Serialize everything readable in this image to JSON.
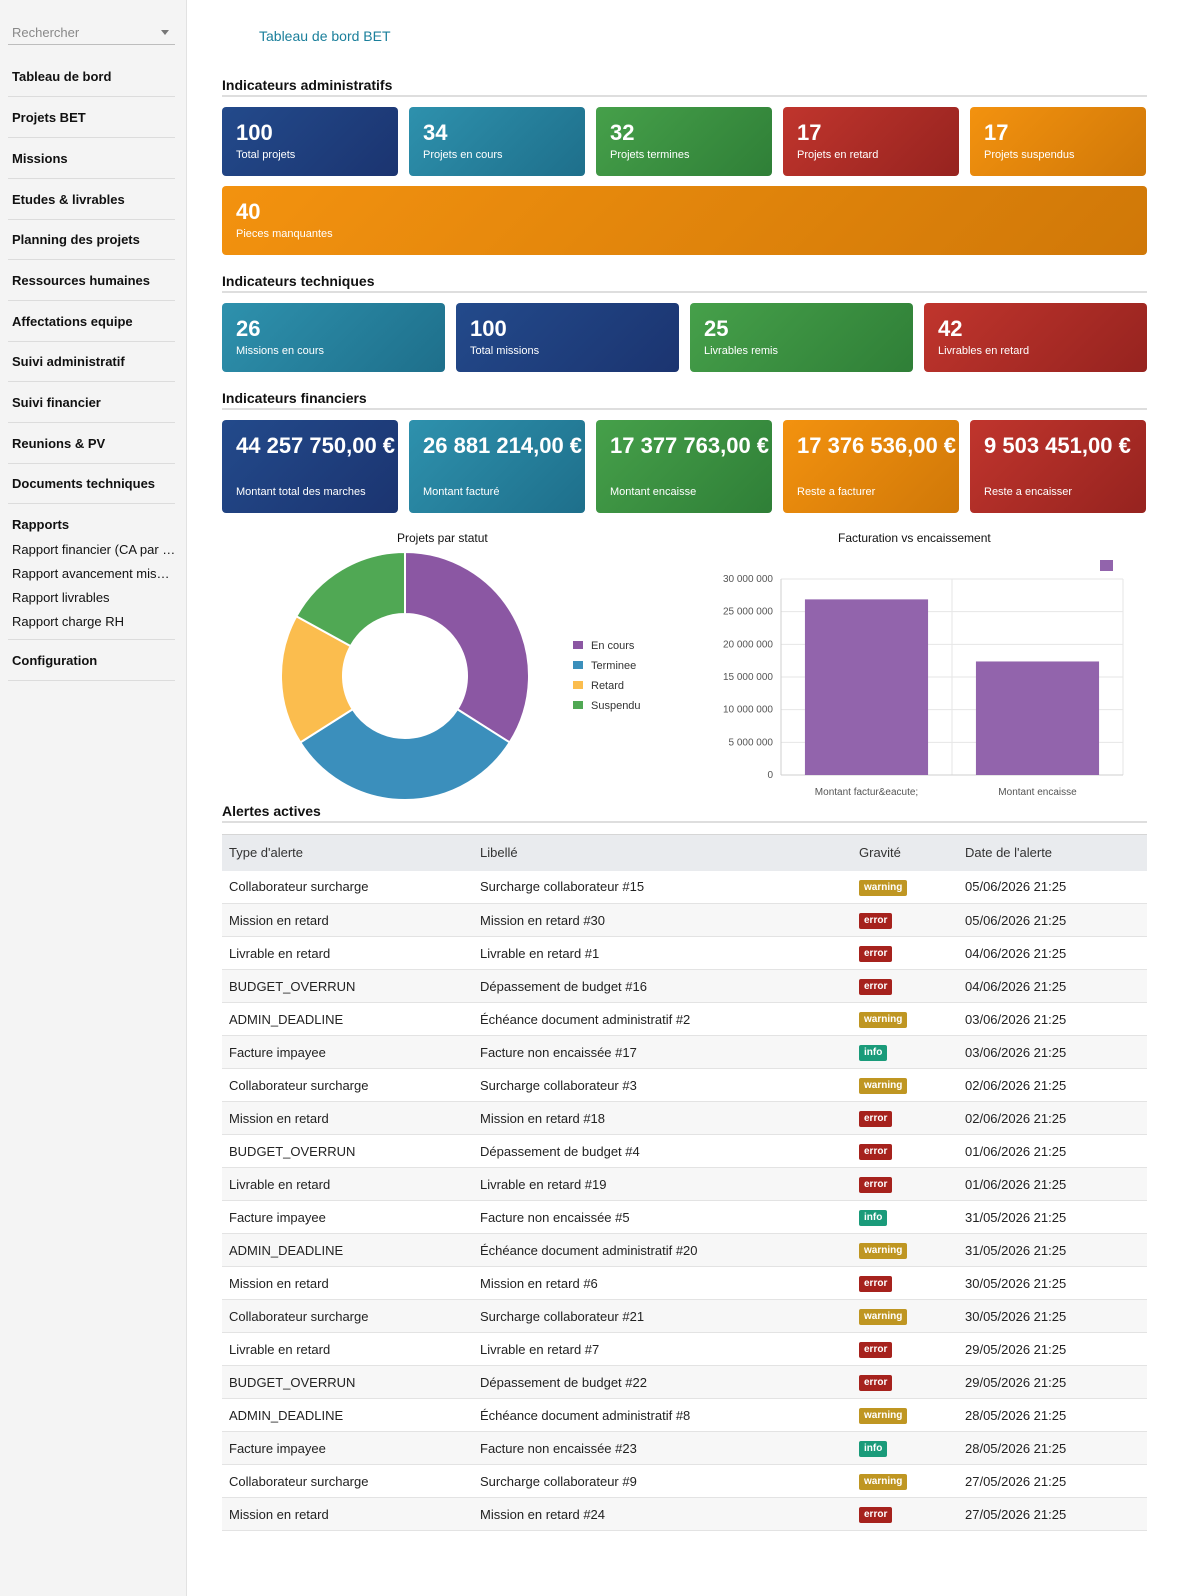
{
  "search": {
    "placeholder": "Rechercher"
  },
  "sidebar": {
    "items": [
      {
        "label": "Tableau de bord"
      },
      {
        "label": "Projets BET"
      },
      {
        "label": "Missions"
      },
      {
        "label": "Etudes & livrables"
      },
      {
        "label": "Planning des projets"
      },
      {
        "label": "Ressources humaines"
      },
      {
        "label": "Affectations equipe"
      },
      {
        "label": "Suivi administratif"
      },
      {
        "label": "Suivi financier"
      },
      {
        "label": "Reunions & PV"
      },
      {
        "label": "Documents techniques"
      }
    ],
    "reports": {
      "label": "Rapports",
      "items": [
        {
          "label": "Rapport financier (CA par projet)"
        },
        {
          "label": "Rapport avancement missions"
        },
        {
          "label": "Rapport livrables"
        },
        {
          "label": "Rapport charge RH"
        }
      ]
    },
    "config": {
      "label": "Configuration"
    }
  },
  "page": {
    "title": "Tableau de bord BET"
  },
  "sections": {
    "admin": "Indicateurs administratifs",
    "tech": "Indicateurs techniques",
    "fin": "Indicateurs financiers",
    "alerts": "Alertes actives"
  },
  "admin_cards": [
    {
      "value": "100",
      "label": "Total projets",
      "color": "#234a8b"
    },
    {
      "value": "34",
      "label": "Projets en cours",
      "color": "#2e91ad"
    },
    {
      "value": "32",
      "label": "Projets termines",
      "color": "#46a04a"
    },
    {
      "value": "17",
      "label": "Projets en retard",
      "color": "#c0352d"
    },
    {
      "value": "17",
      "label": "Projets suspendus",
      "color": "#f3920f"
    },
    {
      "value": "40",
      "label": "Pieces manquantes",
      "color": "#f3920f"
    }
  ],
  "tech_cards": [
    {
      "value": "26",
      "label": "Missions en cours",
      "color": "#2e91ad"
    },
    {
      "value": "100",
      "label": "Total missions",
      "color": "#234a8b"
    },
    {
      "value": "25",
      "label": "Livrables remis",
      "color": "#46a04a"
    },
    {
      "value": "42",
      "label": "Livrables en retard",
      "color": "#c0352d"
    }
  ],
  "fin_cards": [
    {
      "value": "44 257 750,00 €",
      "label": "Montant total des marches",
      "color": "#234a8b"
    },
    {
      "value": "26 881 214,00 €",
      "label": "Montant facturé",
      "color": "#2e91ad"
    },
    {
      "value": "17 377 763,00 €",
      "label": "Montant encaisse",
      "color": "#46a04a"
    },
    {
      "value": "17 376 536,00 €",
      "label": "Reste a facturer",
      "color": "#f3920f"
    },
    {
      "value": "9 503 451,00 €",
      "label": "Reste a encaisser",
      "color": "#c0352d"
    }
  ],
  "chart_data": [
    {
      "type": "pie",
      "title": "Projets par statut",
      "categories": [
        "En cours",
        "Terminee",
        "Retard",
        "Suspendu"
      ],
      "values": [
        34,
        32,
        17,
        17
      ],
      "colors": [
        "#8b57a3",
        "#3b8fbc",
        "#fbbd4e",
        "#50a854"
      ],
      "legend": "right"
    },
    {
      "type": "bar",
      "title": "Facturation vs encaissement",
      "categories": [
        "Montant factur&eacute;",
        "Montant encaisse"
      ],
      "series": [
        {
          "values": [
            26881214,
            17377763
          ]
        }
      ],
      "color": "#9264ac",
      "ylim": [
        0,
        30000000
      ],
      "yticks": [
        "0",
        "5 000 000",
        "10 000 000",
        "15 000 000",
        "20 000 000",
        "25 000 000",
        "30 000 000"
      ],
      "grid": true,
      "legend": "top"
    }
  ],
  "alerts": {
    "headers": [
      "Type d'alerte",
      "Libellé",
      "Gravité",
      "Date de l'alerte"
    ],
    "rows": [
      {
        "type": "Collaborateur surcharge",
        "label": "Surcharge collaborateur #15",
        "severity": "warning",
        "date": "05/06/2026 21:25"
      },
      {
        "type": "Mission en retard",
        "label": "Mission en retard #30",
        "severity": "error",
        "date": "05/06/2026 21:25"
      },
      {
        "type": "Livrable en retard",
        "label": "Livrable en retard #1",
        "severity": "error",
        "date": "04/06/2026 21:25"
      },
      {
        "type": "BUDGET_OVERRUN",
        "label": "Dépassement de budget #16",
        "severity": "error",
        "date": "04/06/2026 21:25"
      },
      {
        "type": "ADMIN_DEADLINE",
        "label": "Échéance document administratif #2",
        "severity": "warning",
        "date": "03/06/2026 21:25"
      },
      {
        "type": "Facture impayee",
        "label": "Facture non encaissée #17",
        "severity": "info",
        "date": "03/06/2026 21:25"
      },
      {
        "type": "Collaborateur surcharge",
        "label": "Surcharge collaborateur #3",
        "severity": "warning",
        "date": "02/06/2026 21:25"
      },
      {
        "type": "Mission en retard",
        "label": "Mission en retard #18",
        "severity": "error",
        "date": "02/06/2026 21:25"
      },
      {
        "type": "BUDGET_OVERRUN",
        "label": "Dépassement de budget #4",
        "severity": "error",
        "date": "01/06/2026 21:25"
      },
      {
        "type": "Livrable en retard",
        "label": "Livrable en retard #19",
        "severity": "error",
        "date": "01/06/2026 21:25"
      },
      {
        "type": "Facture impayee",
        "label": "Facture non encaissée #5",
        "severity": "info",
        "date": "31/05/2026 21:25"
      },
      {
        "type": "ADMIN_DEADLINE",
        "label": "Échéance document administratif #20",
        "severity": "warning",
        "date": "31/05/2026 21:25"
      },
      {
        "type": "Mission en retard",
        "label": "Mission en retard #6",
        "severity": "error",
        "date": "30/05/2026 21:25"
      },
      {
        "type": "Collaborateur surcharge",
        "label": "Surcharge collaborateur #21",
        "severity": "warning",
        "date": "30/05/2026 21:25"
      },
      {
        "type": "Livrable en retard",
        "label": "Livrable en retard #7",
        "severity": "error",
        "date": "29/05/2026 21:25"
      },
      {
        "type": "BUDGET_OVERRUN",
        "label": "Dépassement de budget #22",
        "severity": "error",
        "date": "29/05/2026 21:25"
      },
      {
        "type": "ADMIN_DEADLINE",
        "label": "Échéance document administratif #8",
        "severity": "warning",
        "date": "28/05/2026 21:25"
      },
      {
        "type": "Facture impayee",
        "label": "Facture non encaissée #23",
        "severity": "info",
        "date": "28/05/2026 21:25"
      },
      {
        "type": "Collaborateur surcharge",
        "label": "Surcharge collaborateur #9",
        "severity": "warning",
        "date": "27/05/2026 21:25"
      },
      {
        "type": "Mission en retard",
        "label": "Mission en retard #24",
        "severity": "error",
        "date": "27/05/2026 21:25"
      }
    ]
  }
}
